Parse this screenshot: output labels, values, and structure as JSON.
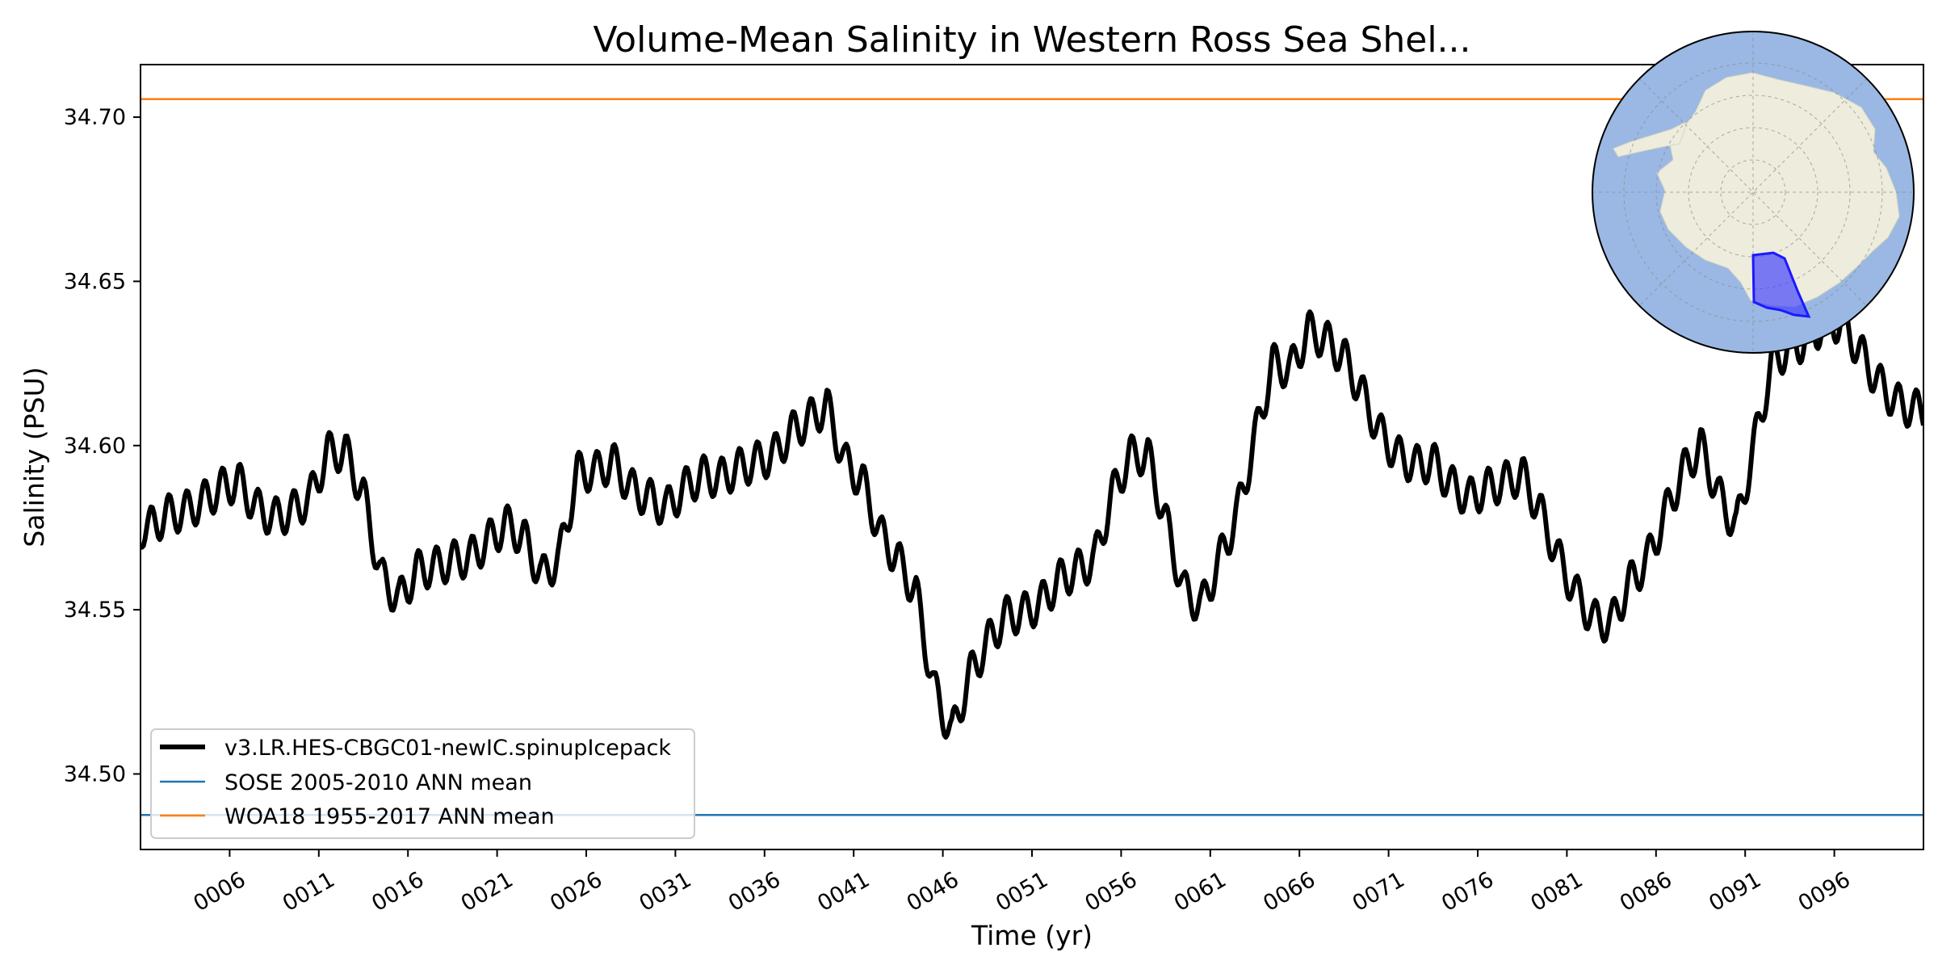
{
  "chart_data": {
    "type": "line",
    "title": "Volume-Mean Salinity in Western Ross Sea Shel...",
    "xlabel": "Time (yr)",
    "ylabel": "Salinity (PSU)",
    "xlim": [
      1,
      101
    ],
    "ylim": [
      34.477,
      34.716
    ],
    "x_ticks": [
      6,
      11,
      16,
      21,
      26,
      31,
      36,
      41,
      46,
      51,
      56,
      61,
      66,
      71,
      76,
      81,
      86,
      91,
      96
    ],
    "x_tick_labels": [
      "0006",
      "0011",
      "0016",
      "0021",
      "0026",
      "0031",
      "0036",
      "0041",
      "0046",
      "0051",
      "0056",
      "0061",
      "0066",
      "0071",
      "0076",
      "0081",
      "0086",
      "0091",
      "0096"
    ],
    "y_ticks": [
      34.5,
      34.55,
      34.6,
      34.65,
      34.7
    ],
    "y_tick_labels": [
      "34.50",
      "34.55",
      "34.60",
      "34.65",
      "34.70"
    ],
    "grid": false,
    "legend_position": "lower-left",
    "series": [
      {
        "name": "v3.LR.HES-CBGC01-newIC.spinupIcepack",
        "color": "#000000",
        "seasonal_amplitude": 0.006,
        "annual_x": [
          1.5,
          2.5,
          3.5,
          4.5,
          5.5,
          6.5,
          7.5,
          8.5,
          9.5,
          10.5,
          11.5,
          12.5,
          13.5,
          14.5,
          15.5,
          16.5,
          17.5,
          18.5,
          19.5,
          20.5,
          21.5,
          22.5,
          23.5,
          24.5,
          25.5,
          26.5,
          27.5,
          28.5,
          29.5,
          30.5,
          31.5,
          32.5,
          33.5,
          34.5,
          35.5,
          36.5,
          37.5,
          38.5,
          39.5,
          40.5,
          41.5,
          42.5,
          43.5,
          44.5,
          45.5,
          46.5,
          47.5,
          48.5,
          49.5,
          50.5,
          51.5,
          52.5,
          53.5,
          54.5,
          55.5,
          56.5,
          57.5,
          58.5,
          59.5,
          60.5,
          61.5,
          62.5,
          63.5,
          64.5,
          65.5,
          66.5,
          67.5,
          68.5,
          69.5,
          70.5,
          71.5,
          72.5,
          73.5,
          74.5,
          75.5,
          76.5,
          77.5,
          78.5,
          79.5,
          80.5,
          81.5,
          82.5,
          83.5,
          84.5,
          85.5,
          86.5,
          87.5,
          88.5,
          89.5,
          90.5,
          91.5,
          92.5,
          93.5,
          94.5,
          95.5,
          96.5,
          97.5,
          98.5,
          99.5,
          100.5
        ],
        "annual_y": [
          34.575,
          34.579,
          34.58,
          34.583,
          34.587,
          34.589,
          34.581,
          34.578,
          34.58,
          34.584,
          34.598,
          34.598,
          34.585,
          34.56,
          34.553,
          34.562,
          34.563,
          34.565,
          34.566,
          34.571,
          34.576,
          34.572,
          34.56,
          34.566,
          34.592,
          34.592,
          34.595,
          34.587,
          34.584,
          34.581,
          34.587,
          34.591,
          34.59,
          34.593,
          34.595,
          34.597,
          34.604,
          34.608,
          34.612,
          34.595,
          34.589,
          34.573,
          34.565,
          34.555,
          34.526,
          34.512,
          34.53,
          34.54,
          34.548,
          34.549,
          34.552,
          34.559,
          34.562,
          34.565,
          34.585,
          34.597,
          34.597,
          34.577,
          34.556,
          34.551,
          34.565,
          34.579,
          34.602,
          34.625,
          34.623,
          34.635,
          34.632,
          34.627,
          34.616,
          34.604,
          34.597,
          34.594,
          34.595,
          34.588,
          34.584,
          34.587,
          34.589,
          34.591,
          34.58,
          34.566,
          34.555,
          34.547,
          34.546,
          34.558,
          34.565,
          34.579,
          34.592,
          34.6,
          34.585,
          34.575,
          34.6,
          34.625,
          34.63,
          34.632,
          34.638,
          34.637,
          34.628,
          34.619,
          34.613,
          34.611
        ]
      },
      {
        "name": "SOSE 2005-2010 ANN mean",
        "color": "#1f77b4",
        "value": 34.4875
      },
      {
        "name": "WOA18 1955-2017 ANN mean",
        "color": "#ff7f0e",
        "value": 34.7055
      }
    ],
    "inset_map": {
      "projection": "south-polar-stereographic",
      "ocean_color": "#9ab8e3",
      "land_color": "#eeecdc",
      "region_color": "#2b2bff",
      "region": "Western Ross Sea Shelf"
    }
  }
}
